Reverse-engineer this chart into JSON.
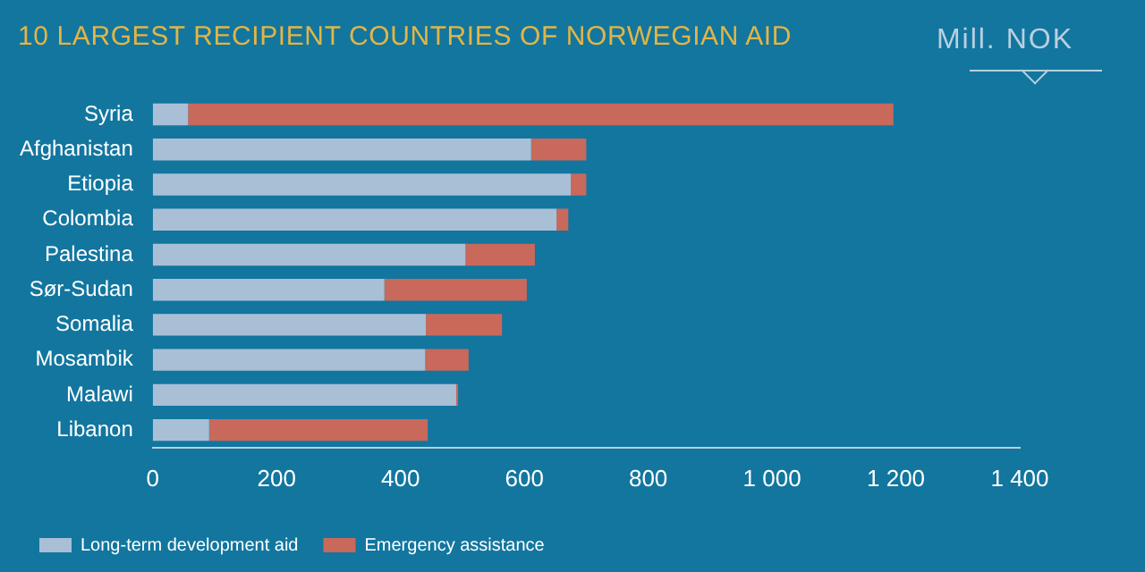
{
  "chart_data": {
    "type": "bar",
    "orientation": "horizontal",
    "stacked": true,
    "title": "10 LARGEST RECIPIENT COUNTRIES OF NORWEGIAN AID",
    "annotations": [
      "Mill. NOK"
    ],
    "categories": [
      "Syria",
      "Afghanistan",
      "Etiopia",
      "Colombia",
      "Palestina",
      "Sør-Sudan",
      "Somalia",
      "Mosambik",
      "Malawi",
      "Libanon"
    ],
    "series": [
      {
        "name": "Long-term development aid",
        "color": "#a9bfd6",
        "values": [
          57,
          611,
          675,
          652,
          505,
          374,
          441,
          440,
          490,
          91
        ]
      },
      {
        "name": "Emergency assistance",
        "color": "#c8695c",
        "values": [
          1139,
          89,
          25,
          19,
          112,
          230,
          123,
          70,
          3,
          353
        ]
      }
    ],
    "xlim": [
      0,
      1400
    ],
    "xticks": [
      0,
      200,
      400,
      600,
      {
        "value": 800,
        "label": "800"
      },
      {
        "value": 1000,
        "label": "1 000"
      },
      {
        "value": 1200,
        "label": "1 200"
      },
      {
        "value": 1400,
        "label": "1 400"
      }
    ],
    "grid": false,
    "legend": "bottom left"
  }
}
